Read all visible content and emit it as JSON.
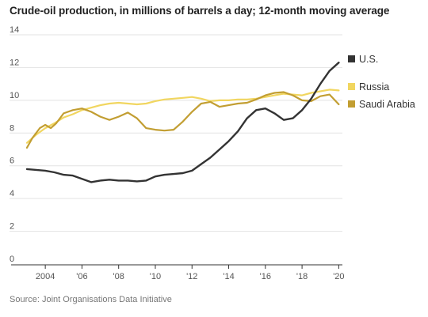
{
  "chart_data": {
    "type": "line",
    "title": "Crude-oil production, in millions of barrels a day; 12-month moving average",
    "source": "Source: Joint Organisations Data Initiative",
    "xlim": [
      2003.0,
      2020.2
    ],
    "ylim": [
      0,
      14
    ],
    "y_ticks": [
      0,
      2,
      4,
      6,
      8,
      10,
      12,
      14
    ],
    "x_ticks": [
      {
        "value": 2004,
        "label": "2004"
      },
      {
        "value": 2006,
        "label": "'06"
      },
      {
        "value": 2008,
        "label": "'08"
      },
      {
        "value": 2010,
        "label": "'10"
      },
      {
        "value": 2012,
        "label": "'12"
      },
      {
        "value": 2014,
        "label": "'14"
      },
      {
        "value": 2016,
        "label": "'16"
      },
      {
        "value": 2018,
        "label": "'18"
      },
      {
        "value": 2020,
        "label": "'20"
      }
    ],
    "grid": "horizontal",
    "legend_position": "right",
    "series": [
      {
        "name": "U.S.",
        "color": "#333333",
        "x": [
          2003.0,
          2003.5,
          2004.0,
          2004.5,
          2005.0,
          2005.5,
          2006.0,
          2006.5,
          2007.0,
          2007.5,
          2008.0,
          2008.5,
          2009.0,
          2009.5,
          2010.0,
          2010.5,
          2011.0,
          2011.5,
          2012.0,
          2012.5,
          2013.0,
          2013.5,
          2014.0,
          2014.5,
          2015.0,
          2015.5,
          2016.0,
          2016.5,
          2017.0,
          2017.5,
          2018.0,
          2018.5,
          2019.0,
          2019.5,
          2020.0
        ],
        "y": [
          5.8,
          5.75,
          5.7,
          5.6,
          5.45,
          5.4,
          5.2,
          5.0,
          5.1,
          5.15,
          5.1,
          5.1,
          5.05,
          5.1,
          5.35,
          5.45,
          5.5,
          5.55,
          5.7,
          6.1,
          6.5,
          7.0,
          7.5,
          8.1,
          8.9,
          9.4,
          9.5,
          9.2,
          8.8,
          8.9,
          9.4,
          10.1,
          11.0,
          11.8,
          12.3
        ]
      },
      {
        "name": "Russia",
        "color": "#f1d660",
        "x": [
          2003.0,
          2003.5,
          2004.0,
          2004.5,
          2005.0,
          2005.5,
          2006.0,
          2006.5,
          2007.0,
          2007.5,
          2008.0,
          2008.5,
          2009.0,
          2009.5,
          2010.0,
          2010.5,
          2011.0,
          2011.5,
          2012.0,
          2012.5,
          2013.0,
          2013.5,
          2014.0,
          2014.5,
          2015.0,
          2015.5,
          2016.0,
          2016.5,
          2017.0,
          2017.5,
          2018.0,
          2018.5,
          2019.0,
          2019.5,
          2020.0
        ],
        "y": [
          7.4,
          7.9,
          8.3,
          8.6,
          8.95,
          9.15,
          9.4,
          9.55,
          9.7,
          9.8,
          9.85,
          9.8,
          9.75,
          9.8,
          9.95,
          10.05,
          10.1,
          10.15,
          10.2,
          10.1,
          9.95,
          10.0,
          10.0,
          10.05,
          10.05,
          10.1,
          10.2,
          10.3,
          10.4,
          10.35,
          10.3,
          10.45,
          10.55,
          10.65,
          10.6
        ]
      },
      {
        "name": "Saudi Arabia",
        "color": "#c29e32",
        "x": [
          2003.0,
          2003.3,
          2003.7,
          2004.0,
          2004.3,
          2004.6,
          2005.0,
          2005.5,
          2006.0,
          2006.5,
          2007.0,
          2007.5,
          2008.0,
          2008.5,
          2009.0,
          2009.5,
          2010.0,
          2010.5,
          2011.0,
          2011.5,
          2012.0,
          2012.5,
          2013.0,
          2013.5,
          2014.0,
          2014.5,
          2015.0,
          2015.5,
          2016.0,
          2016.5,
          2017.0,
          2017.5,
          2018.0,
          2018.5,
          2019.0,
          2019.5,
          2020.0
        ],
        "y": [
          7.1,
          7.7,
          8.3,
          8.5,
          8.3,
          8.6,
          9.2,
          9.4,
          9.5,
          9.3,
          9.0,
          8.8,
          9.0,
          9.25,
          8.9,
          8.3,
          8.2,
          8.15,
          8.2,
          8.7,
          9.3,
          9.8,
          9.9,
          9.6,
          9.7,
          9.8,
          9.85,
          10.05,
          10.3,
          10.45,
          10.5,
          10.3,
          10.0,
          9.95,
          10.25,
          10.35,
          9.75
        ]
      }
    ]
  }
}
